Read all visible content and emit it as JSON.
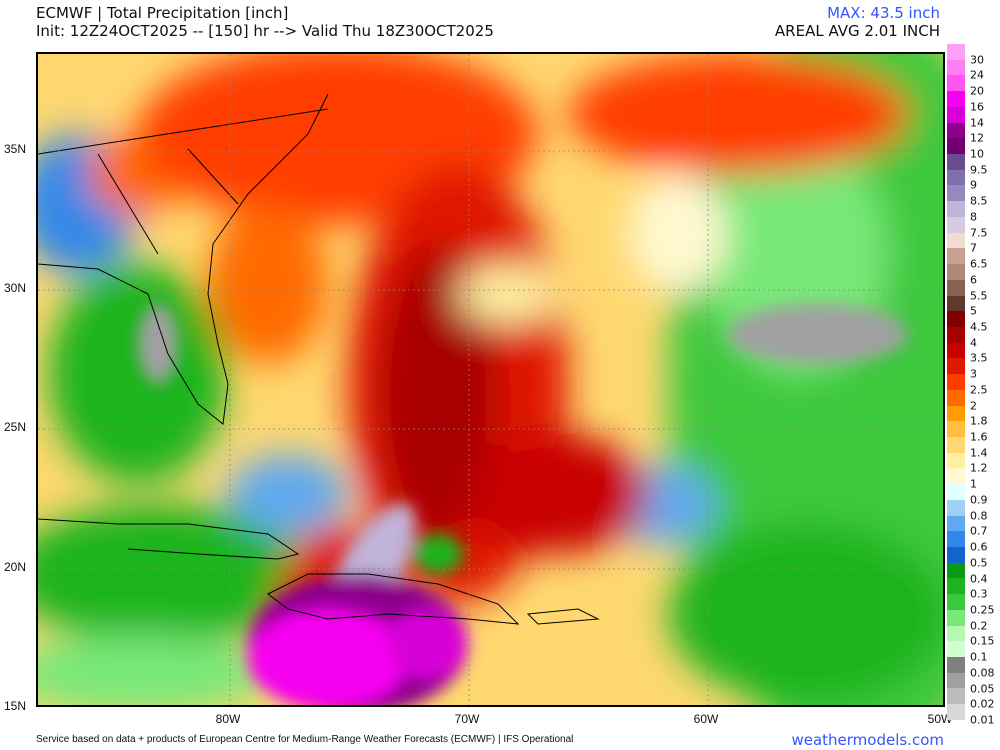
{
  "header": {
    "title": "ECMWF | Total Precipitation [inch]",
    "subtitle": "Init: 12Z24OCT2025 -- [150] hr --> Valid Thu 18Z30OCT2025",
    "max": "MAX: 43.5 inch",
    "areal_avg": "AREAL AVG 2.01 INCH"
  },
  "map": {
    "variable": "Total Precipitation",
    "units": "inch",
    "lat_labels": [
      "35N",
      "30N",
      "25N",
      "20N",
      "15N"
    ],
    "lon_labels": [
      "80W",
      "70W",
      "60W",
      "50W"
    ]
  },
  "colorbar": {
    "labels": [
      "30",
      "24",
      "20",
      "16",
      "14",
      "12",
      "10",
      "9.5",
      "9",
      "8.5",
      "8",
      "7.5",
      "7",
      "6.5",
      "6",
      "5.5",
      "5",
      "4.5",
      "4",
      "3.5",
      "3",
      "2.5",
      "2",
      "1.8",
      "1.6",
      "1.4",
      "1.2",
      "1",
      "0.9",
      "0.8",
      "0.7",
      "0.6",
      "0.5",
      "0.4",
      "0.3",
      "0.25",
      "0.2",
      "0.15",
      "0.1",
      "0.08",
      "0.05",
      "0.02",
      "0.01"
    ],
    "colors": [
      "#ffa0f8",
      "#ff80f4",
      "#ff55f2",
      "#f500f0",
      "#d800d8",
      "#8c008c",
      "#700070",
      "#6c4c90",
      "#8070b0",
      "#9888c0",
      "#c0b4d8",
      "#d4cce0",
      "#f0dcd4",
      "#c8a090",
      "#b08878",
      "#8c6050",
      "#603830",
      "#800000",
      "#a80000",
      "#c80000",
      "#e01800",
      "#ff3c00",
      "#ff6a00",
      "#ff9c00",
      "#ffbe40",
      "#ffd870",
      "#fff0a0",
      "#fff8d0",
      "#e0ffff",
      "#a0d0f8",
      "#60a8f0",
      "#3088e8",
      "#1464d0",
      "#0a9a14",
      "#1eb41e",
      "#3cc83c",
      "#78e878",
      "#b4f8b4",
      "#d0ffd0",
      "#808080",
      "#a0a0a0",
      "#bcbcbc",
      "#d8d8d8"
    ]
  },
  "footer": {
    "credit": "Service based on data + products of European Centre for Medium-Range Weather Forecasts (ECMWF) | IFS Operational",
    "brand": "weathermodels.com"
  }
}
